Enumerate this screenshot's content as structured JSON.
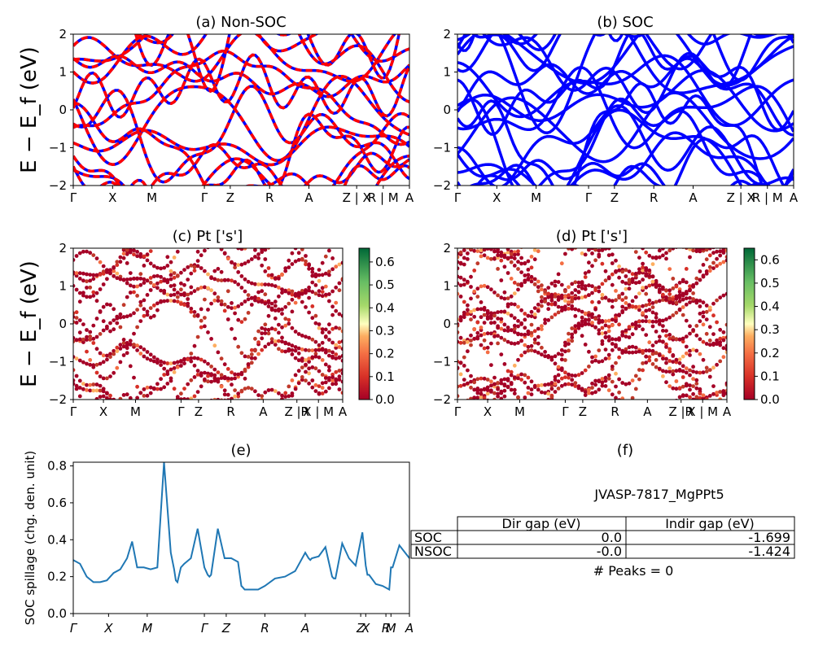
{
  "chart_data": [
    {
      "id": "a",
      "type": "line",
      "title": "(a) Non-SOC",
      "ylabel": "E − E_f (eV)",
      "ylim": [
        -2,
        2
      ],
      "yticks": [
        "2",
        "1",
        "0",
        "−1",
        "−2"
      ],
      "kpoints": [
        "Γ",
        "X",
        "M",
        "Γ",
        "Z",
        "R",
        "A",
        "Z | X",
        "R | M",
        "A"
      ],
      "series": [
        {
          "values": "band lines"
        }
      ],
      "colors": {
        "primary": "#0000ff",
        "overlay": "#ff0000"
      }
    },
    {
      "id": "b",
      "type": "line",
      "title": "(b) SOC",
      "ylim": [
        -2,
        2
      ],
      "yticks": [
        "2",
        "1",
        "0",
        "−1",
        "−2"
      ],
      "kpoints": [
        "Γ",
        "X",
        "M",
        "Γ",
        "Z",
        "R",
        "A",
        "Z | X",
        "R | M",
        "A"
      ],
      "colors": {
        "primary": "#0000ff"
      }
    },
    {
      "id": "c",
      "type": "scatter",
      "title": "(c)  Pt ['s']",
      "ylabel": "E − E_f (eV)",
      "ylim": [
        -2,
        2
      ],
      "yticks": [
        "2",
        "1",
        "0",
        "−1",
        "−2"
      ],
      "kpoints": [
        "Γ",
        "X",
        "M",
        "Γ",
        "Z",
        "R",
        "A",
        "Z |R",
        "X | M",
        "A"
      ],
      "colorbar": {
        "ticks": [
          "0.6",
          "0.5",
          "0.4",
          "0.3",
          "0.2",
          "0.1",
          "0.0"
        ],
        "range": [
          0,
          0.66
        ],
        "colormap": "RdYlGn"
      }
    },
    {
      "id": "d",
      "type": "scatter",
      "title": "(d) Pt ['s']",
      "ylim": [
        -2,
        2
      ],
      "yticks": [
        "2",
        "1",
        "0",
        "−1",
        "−2"
      ],
      "kpoints": [
        "Γ",
        "X",
        "M",
        "Γ",
        "Z",
        "R",
        "A",
        "Z |R",
        "X | M",
        "A"
      ],
      "colorbar": {
        "ticks": [
          "0.6",
          "0.5",
          "0.4",
          "0.3",
          "0.2",
          "0.1",
          "0.0"
        ],
        "range": [
          0,
          0.65
        ],
        "colormap": "RdYlGn"
      }
    },
    {
      "id": "e",
      "type": "line",
      "title": "(e)",
      "ylabel": "SOC spillage (chg. den. unit)",
      "ylim": [
        0,
        0.82
      ],
      "yticks": [
        "0.8",
        "0.6",
        "0.4",
        "0.2",
        "0.0"
      ],
      "kpoints": [
        "Γ",
        "X",
        "M",
        "Γ",
        "Z",
        "R",
        "A",
        "Z",
        "X",
        "R",
        "M",
        "A"
      ],
      "x": [
        0,
        0.02,
        0.04,
        0.06,
        0.08,
        0.1,
        0.12,
        0.14,
        0.16,
        0.175,
        0.19,
        0.21,
        0.23,
        0.25,
        0.27,
        0.29,
        0.3,
        0.305,
        0.31,
        0.32,
        0.33,
        0.35,
        0.37,
        0.39,
        0.4,
        0.405,
        0.41,
        0.43,
        0.45,
        0.47,
        0.49,
        0.5,
        0.505,
        0.51,
        0.53,
        0.55,
        0.57,
        0.6,
        0.63,
        0.66,
        0.69,
        0.7,
        0.705,
        0.71,
        0.73,
        0.75,
        0.77,
        0.775,
        0.78,
        0.8,
        0.81,
        0.82,
        0.84,
        0.85,
        0.86,
        0.87,
        0.875,
        0.88,
        0.9,
        0.92,
        0.94,
        0.945,
        0.95,
        0.97,
        1.0
      ],
      "values": [
        0.29,
        0.27,
        0.2,
        0.17,
        0.17,
        0.18,
        0.22,
        0.24,
        0.3,
        0.39,
        0.25,
        0.25,
        0.24,
        0.25,
        0.82,
        0.33,
        0.24,
        0.18,
        0.17,
        0.25,
        0.27,
        0.3,
        0.46,
        0.25,
        0.21,
        0.2,
        0.21,
        0.46,
        0.3,
        0.3,
        0.28,
        0.15,
        0.14,
        0.13,
        0.13,
        0.13,
        0.15,
        0.19,
        0.2,
        0.23,
        0.33,
        0.3,
        0.29,
        0.3,
        0.31,
        0.36,
        0.2,
        0.19,
        0.19,
        0.38,
        0.34,
        0.3,
        0.26,
        0.35,
        0.44,
        0.26,
        0.21,
        0.21,
        0.16,
        0.15,
        0.13,
        0.25,
        0.25,
        0.37,
        0.3
      ]
    }
  ],
  "table": {
    "panel_title": "(f)",
    "caption": "JVASP-7817_MgPPt5",
    "headers": [
      "",
      "Dir gap (eV)",
      "Indir gap (eV)"
    ],
    "rows": [
      {
        "label": "SOC",
        "dir": "0.0",
        "indir": "-1.699"
      },
      {
        "label": "NSOC",
        "dir": "-0.0",
        "indir": "-1.424"
      }
    ],
    "footer": "# Peaks = 0"
  }
}
